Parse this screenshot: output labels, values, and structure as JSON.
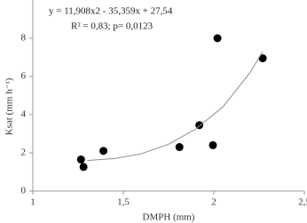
{
  "chart_data": {
    "type": "scatter",
    "annotations": [
      "y = 11,908x2 - 35,359x + 27,54",
      "R² = 0,83; p= 0,0123"
    ],
    "x_label": "DMPH (mm)",
    "y_label": "Ksat (mm h⁻¹)",
    "xlim": [
      1,
      2.5
    ],
    "xticks": [
      1,
      {
        "value": 1.5,
        "label": "1,5"
      },
      2,
      {
        "value": 2.5,
        "label": "2,5"
      }
    ],
    "ylim": [
      0,
      10
    ],
    "yticks": [
      0,
      2,
      4,
      6,
      8
    ],
    "grid": false,
    "series": [
      {
        "type": "scatter",
        "color": "#000000",
        "x": [
          1.266,
          1.28,
          1.39,
          1.81,
          1.92,
          1.995,
          2.02,
          2.27
        ],
        "values": [
          1.65,
          1.26,
          2.1,
          2.3,
          3.45,
          2.4,
          8.0,
          6.95
        ]
      },
      {
        "type": "line",
        "color": "#8c8c8c",
        "x": [
          1.3,
          1.45,
          1.6,
          1.75,
          1.9,
          2.05,
          2.2,
          2.27
        ],
        "values": [
          1.6,
          1.7,
          1.95,
          2.45,
          3.25,
          4.4,
          6.2,
          7.3
        ]
      }
    ]
  }
}
